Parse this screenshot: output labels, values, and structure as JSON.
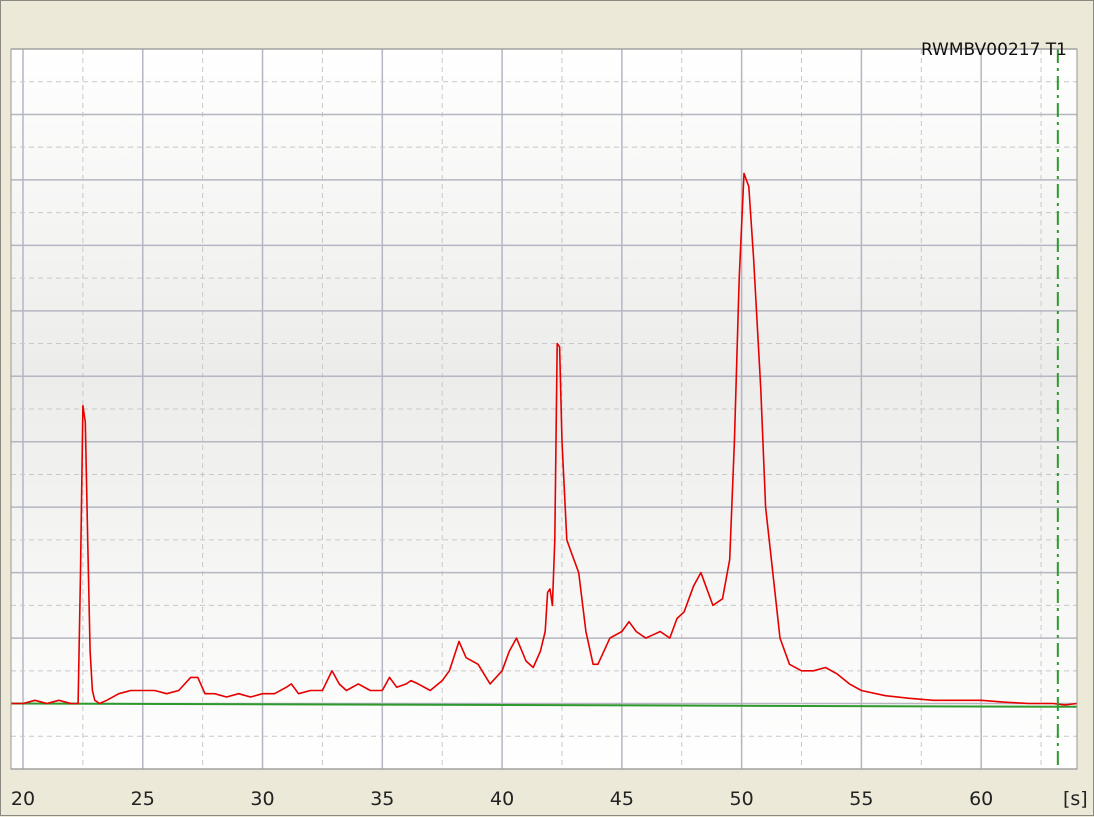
{
  "chart_data": {
    "type": "line",
    "trace_label": "RWMBV00217 T1",
    "x_unit_label": "[s]",
    "x_ticks": [
      20,
      25,
      30,
      35,
      40,
      45,
      50,
      55,
      60
    ],
    "xlim": [
      19.5,
      64
    ],
    "ylim": [
      -1,
      10
    ],
    "grid": true,
    "colors": {
      "signal": "#e60000",
      "baseline": "#2e9a2e",
      "marker": "#2e9a2e",
      "grid_major": "#b4b6c2",
      "grid_minor": "#c8c8c8"
    },
    "marker_x": 63.2,
    "series": [
      {
        "x": [
          19.5,
          20.0,
          20.5,
          21.0,
          21.5,
          22.0,
          22.3,
          22.4,
          22.5,
          22.6,
          22.7,
          22.8,
          22.9,
          23.0,
          23.2,
          23.5,
          24.0,
          24.5,
          25.0,
          25.5,
          26.0,
          26.5,
          27.0,
          27.3,
          27.6,
          28.0,
          28.5,
          29.0,
          29.5,
          30.0,
          30.5,
          31.0,
          31.2,
          31.5,
          32.0,
          32.5,
          32.9,
          33.2,
          33.5,
          34.0,
          34.5,
          35.0,
          35.3,
          35.6,
          36.0,
          36.2,
          36.5,
          37.0,
          37.5,
          37.8,
          38.2,
          38.5,
          39.0,
          39.5,
          40.0,
          40.3,
          40.6,
          41.0,
          41.3,
          41.6,
          41.8,
          41.9,
          42.0,
          42.1,
          42.2,
          42.3,
          42.4,
          42.5,
          42.7,
          42.9,
          43.2,
          43.5,
          43.8,
          44.0,
          44.5,
          45.0,
          45.3,
          45.6,
          46.0,
          46.3,
          46.6,
          47.0,
          47.3,
          47.6,
          48.0,
          48.3,
          48.5,
          48.8,
          49.2,
          49.5,
          49.7,
          49.9,
          50.1,
          50.3,
          50.5,
          50.8,
          51.0,
          51.3,
          51.6,
          52.0,
          52.5,
          53.0,
          53.5,
          54.0,
          54.5,
          55.0,
          56.0,
          57.0,
          58.0,
          59.0,
          60.0,
          61.0,
          62.0,
          63.0,
          63.5,
          64.0
        ],
        "y": [
          0.0,
          0.0,
          0.05,
          0.0,
          0.05,
          0.0,
          0.0,
          2.0,
          4.55,
          4.3,
          2.5,
          0.8,
          0.2,
          0.05,
          0.0,
          0.05,
          0.15,
          0.2,
          0.2,
          0.2,
          0.15,
          0.2,
          0.4,
          0.4,
          0.15,
          0.15,
          0.1,
          0.15,
          0.1,
          0.15,
          0.15,
          0.25,
          0.3,
          0.15,
          0.2,
          0.2,
          0.5,
          0.3,
          0.2,
          0.3,
          0.2,
          0.2,
          0.4,
          0.25,
          0.3,
          0.35,
          0.3,
          0.2,
          0.35,
          0.5,
          0.95,
          0.7,
          0.6,
          0.3,
          0.5,
          0.8,
          1.0,
          0.65,
          0.55,
          0.8,
          1.1,
          1.7,
          1.75,
          1.5,
          2.5,
          5.5,
          5.45,
          4.0,
          2.5,
          2.3,
          2.0,
          1.1,
          0.6,
          0.6,
          1.0,
          1.1,
          1.25,
          1.1,
          1.0,
          1.05,
          1.1,
          1.0,
          1.3,
          1.4,
          1.8,
          2.0,
          1.8,
          1.5,
          1.6,
          2.2,
          4.0,
          6.5,
          8.1,
          7.9,
          6.8,
          4.8,
          3.0,
          2.0,
          1.0,
          0.6,
          0.5,
          0.5,
          0.55,
          0.45,
          0.3,
          0.2,
          0.12,
          0.08,
          0.05,
          0.05,
          0.05,
          0.02,
          0.0,
          0.0,
          -0.02,
          0.0
        ]
      },
      {
        "x": [
          19.5,
          64.0
        ],
        "y": [
          0.0,
          -0.05
        ]
      }
    ]
  }
}
